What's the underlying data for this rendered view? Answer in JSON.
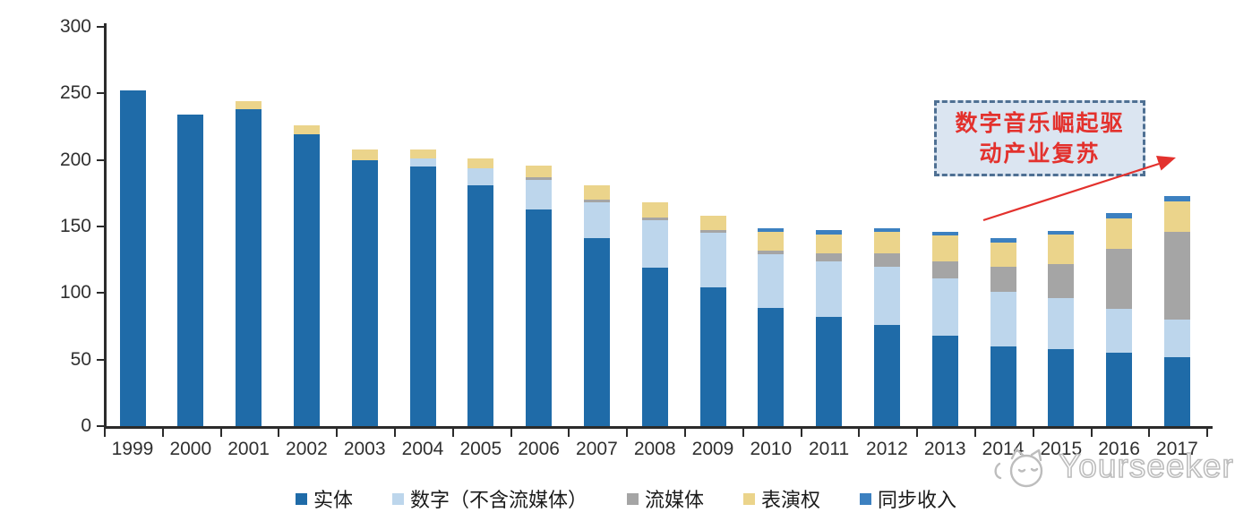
{
  "chart_data": {
    "type": "bar",
    "stacked": true,
    "title": "",
    "xlabel": "",
    "ylabel": "",
    "ylim": [
      0,
      300
    ],
    "yticks": [
      0,
      50,
      100,
      150,
      200,
      250,
      300
    ],
    "grid": false,
    "legend_position": "bottom",
    "categories": [
      "1999",
      "2000",
      "2001",
      "2002",
      "2003",
      "2004",
      "2005",
      "2006",
      "2007",
      "2008",
      "2009",
      "2010",
      "2011",
      "2012",
      "2013",
      "2014",
      "2015",
      "2016",
      "2017"
    ],
    "series": [
      {
        "name": "实体",
        "color": "#1F6BA8",
        "values": [
          252,
          234,
          238,
          219,
          200,
          195,
          181,
          163,
          141,
          119,
          104,
          89,
          82,
          76,
          68,
          60,
          58,
          55,
          52
        ]
      },
      {
        "name": "数字（不含流媒体）",
        "color": "#BDD6EC",
        "values": [
          0,
          0,
          0,
          0,
          0,
          6,
          13,
          22,
          27,
          36,
          41,
          40,
          42,
          44,
          43,
          41,
          38,
          33,
          28
        ]
      },
      {
        "name": "流媒体",
        "color": "#A5A5A5",
        "values": [
          0,
          0,
          0,
          0,
          0,
          0,
          0,
          2,
          2,
          2,
          2,
          3,
          6,
          10,
          13,
          19,
          26,
          45,
          66
        ]
      },
      {
        "name": "表演权",
        "color": "#EBD48B",
        "values": [
          0,
          0,
          6,
          7,
          8,
          7,
          7,
          9,
          11,
          11,
          11,
          14,
          14,
          16,
          19,
          18,
          22,
          23,
          23
        ]
      },
      {
        "name": "同步收入",
        "color": "#3C80C0",
        "values": [
          0,
          0,
          0,
          0,
          0,
          0,
          0,
          0,
          0,
          0,
          0,
          3,
          3,
          3,
          3,
          3,
          3,
          4,
          4
        ]
      }
    ]
  },
  "annotation": {
    "lines": [
      "数字音乐崛起驱",
      "动产业复苏"
    ],
    "text_color": "#E3312D",
    "box_fill": "#DBE5F1",
    "box_border": "#4F7093"
  },
  "watermark": {
    "text": "Yourseeker"
  }
}
